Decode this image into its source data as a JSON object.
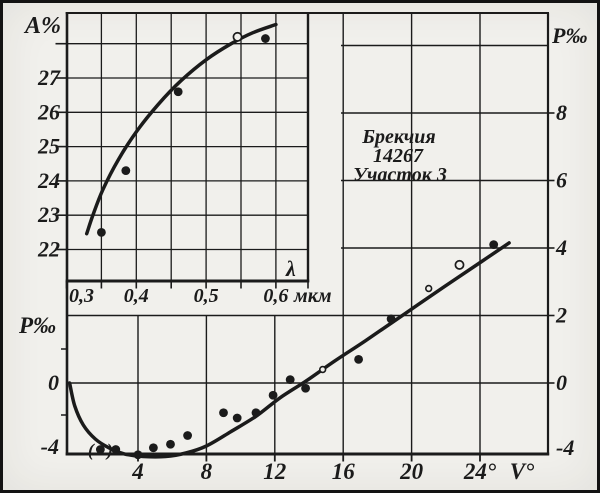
{
  "figure": {
    "background": "#f1f0ec",
    "ink": "#1b1b1b",
    "annotation": {
      "line1": "Брекчия",
      "line2": "14267",
      "line3": "Участок 3"
    },
    "paren_open": "(",
    "paren_close": ")"
  },
  "inset": {
    "y_axis_title": "А%",
    "x_axis_title": "λ",
    "x_unit": "мкм",
    "y_tick_labels": [
      "27",
      "26",
      "25",
      "24",
      "23",
      "22"
    ],
    "y_tick_values": [
      27,
      26,
      25,
      24,
      23,
      22
    ],
    "x_tick_labels": [
      "0,3",
      "0,4",
      "0,5",
      "0,6"
    ],
    "x_tick_values": [
      0.3,
      0.4,
      0.5,
      0.6
    ]
  },
  "main": {
    "left_axis_title": "P‰",
    "right_axis_title": "P‰",
    "x_axis_title": "V°",
    "left_tick_labels": [
      "0",
      "-4"
    ],
    "left_tick_values": [
      0,
      -4
    ],
    "right_tick_labels": [
      "8",
      "6",
      "4",
      "2",
      "0",
      "-4"
    ],
    "right_tick_values": [
      8,
      6,
      4,
      2,
      0,
      -4
    ],
    "x_tick_labels": [
      "4",
      "8",
      "12",
      "16",
      "20",
      "24°"
    ],
    "x_tick_values": [
      4,
      8,
      12,
      16,
      20,
      24
    ]
  },
  "chart_data": [
    {
      "id": "inset-albedo-spectrum",
      "type": "scatter",
      "title": "Spectral albedo of breccia 14267, area 3",
      "xlabel": "λ, мкм",
      "ylabel": "А%",
      "xlim": [
        0.3,
        0.645
      ],
      "ylim": [
        21.1,
        28.9
      ],
      "grid": true,
      "x_grid_step": 0.05,
      "y_grid_step": 1,
      "points": [
        {
          "x": 0.35,
          "y": 22.5,
          "marker": "filled"
        },
        {
          "x": 0.385,
          "y": 24.3,
          "marker": "filled"
        },
        {
          "x": 0.46,
          "y": 26.6,
          "marker": "filled"
        },
        {
          "x": 0.545,
          "y": 28.2,
          "marker": "open"
        },
        {
          "x": 0.585,
          "y": 28.15,
          "marker": "filled"
        }
      ],
      "fit_curve": [
        [
          0.329,
          22.46
        ],
        [
          0.338,
          23.01
        ],
        [
          0.352,
          23.74
        ],
        [
          0.374,
          24.61
        ],
        [
          0.4,
          25.43
        ],
        [
          0.431,
          26.22
        ],
        [
          0.464,
          26.92
        ],
        [
          0.5,
          27.53
        ],
        [
          0.536,
          28.0
        ],
        [
          0.567,
          28.32
        ],
        [
          0.6,
          28.56
        ]
      ]
    },
    {
      "id": "main-polarization-vs-phase-angle",
      "type": "scatter",
      "title": "Polarization vs phase angle, breccia 14267, area 3",
      "xlabel": "V°",
      "ylabel": "P‰",
      "xlim": [
        0,
        28
      ],
      "ylim": [
        -4,
        11
      ],
      "grid": true,
      "points": [
        {
          "v": 1.8,
          "p": -3.8,
          "marker": "filled",
          "paren": true
        },
        {
          "v": 2.7,
          "p": -3.8,
          "marker": "filled"
        },
        {
          "v": 4.0,
          "p": -4.1,
          "marker": "filled"
        },
        {
          "v": 4.9,
          "p": -3.7,
          "marker": "filled"
        },
        {
          "v": 5.9,
          "p": -3.5,
          "marker": "filled"
        },
        {
          "v": 6.9,
          "p": -3.0,
          "marker": "filled"
        },
        {
          "v": 9.0,
          "p": -1.7,
          "marker": "filled"
        },
        {
          "v": 9.8,
          "p": -2.0,
          "marker": "filled"
        },
        {
          "v": 10.9,
          "p": -1.7,
          "marker": "filled"
        },
        {
          "v": 11.9,
          "p": -0.7,
          "marker": "filled"
        },
        {
          "v": 12.9,
          "p": 0.1,
          "marker": "filled"
        },
        {
          "v": 13.8,
          "p": -0.3,
          "marker": "filled"
        },
        {
          "v": 14.8,
          "p": 0.4,
          "marker": "open-small"
        },
        {
          "v": 16.9,
          "p": 0.7,
          "marker": "filled"
        },
        {
          "v": 18.8,
          "p": 1.9,
          "marker": "filled"
        },
        {
          "v": 21.0,
          "p": 2.8,
          "marker": "open-small"
        },
        {
          "v": 22.8,
          "p": 3.5,
          "marker": "open"
        },
        {
          "v": 24.8,
          "p": 4.1,
          "marker": "filled"
        }
      ],
      "fit_curve": [
        [
          0.0,
          0.0
        ],
        [
          0.3,
          -1.3
        ],
        [
          0.8,
          -2.4
        ],
        [
          1.5,
          -3.2
        ],
        [
          2.3,
          -3.7
        ],
        [
          3.2,
          -4.05
        ],
        [
          4.3,
          -4.2
        ],
        [
          5.6,
          -4.2
        ],
        [
          6.8,
          -4.0
        ],
        [
          8.0,
          -3.6
        ],
        [
          9.4,
          -2.8
        ],
        [
          10.9,
          -1.9
        ],
        [
          12.3,
          -0.85
        ],
        [
          13.8,
          0.05
        ],
        [
          15.5,
          0.65
        ],
        [
          17.3,
          1.25
        ],
        [
          19.6,
          2.05
        ],
        [
          21.9,
          2.85
        ],
        [
          24.1,
          3.6
        ],
        [
          25.7,
          4.15
        ]
      ]
    }
  ]
}
